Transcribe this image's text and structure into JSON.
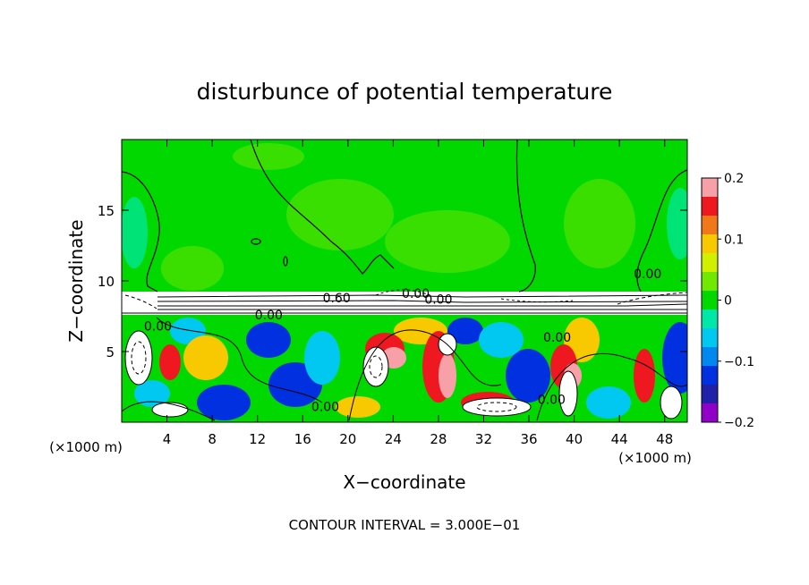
{
  "chart_data": {
    "type": "heatmap",
    "title": "disturbunce of potential temperature",
    "xlabel": "X−coordinate",
    "ylabel": "Z−coordinate",
    "x_unit_left": "(×1000 m)",
    "x_unit_right": "(×1000 m)",
    "footer": "CONTOUR INTERVAL = 3.000E−01",
    "xlim": [
      0,
      50
    ],
    "ylim": [
      0,
      20
    ],
    "x_ticks": [
      4,
      8,
      12,
      16,
      20,
      24,
      28,
      32,
      36,
      40,
      44,
      48
    ],
    "y_ticks": [
      5,
      10,
      15
    ],
    "colorbar": {
      "range": [
        -0.2,
        0.2
      ],
      "tick_values": [
        0.2,
        0.1,
        0,
        -0.1,
        -0.2
      ],
      "tick_labels": [
        "0.2",
        "0.1",
        "0",
        "−0.1",
        "−0.2"
      ],
      "colors": [
        "#f8a0a8",
        "#f01820",
        "#f07818",
        "#f8c800",
        "#d0f000",
        "#70e800",
        "#00d800",
        "#00e8a8",
        "#00c8f0",
        "#0088f0",
        "#0030e0",
        "#2020a8",
        "#9000c8"
      ]
    },
    "contour_labels": [
      {
        "text": "0.00",
        "x": 3.2,
        "y": 6.8
      },
      {
        "text": "0.60",
        "x": 19.0,
        "y": 8.8
      },
      {
        "text": "0.00",
        "x": 26.0,
        "y": 9.1
      },
      {
        "text": "0.00",
        "x": 28.0,
        "y": 8.7
      },
      {
        "text": "0.00",
        "x": 13.0,
        "y": 7.6
      },
      {
        "text": "0.00",
        "x": 38.5,
        "y": 6.0
      },
      {
        "text": "0.00",
        "x": 18.0,
        "y": 1.1
      },
      {
        "text": "0.00",
        "x": 38.0,
        "y": 1.6
      },
      {
        "text": "0.00",
        "x": 46.5,
        "y": 10.5
      }
    ]
  }
}
